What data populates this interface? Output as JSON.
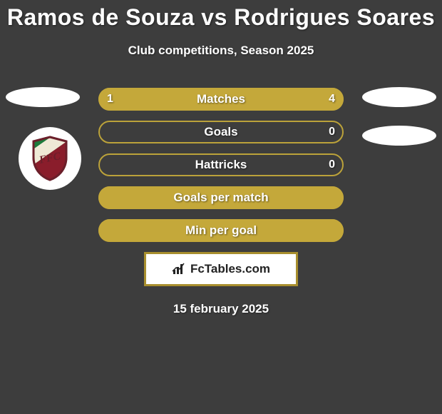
{
  "title": "Ramos de Souza vs Rodrigues Soares",
  "subtitle": "Club competitions, Season 2025",
  "date": "15 february 2025",
  "brand": "FcTables.com",
  "colors": {
    "background": "#3d3d3d",
    "text": "#ffffff",
    "accent": "#c4a83a",
    "accent_border": "#bba23a",
    "brand_border": "#a88f2e",
    "oval": "#ffffff"
  },
  "club_logo": {
    "bg": "#ffffff",
    "shield_border": "#6b1f2a",
    "stripe_green": "#1e7a3c",
    "stripe_cream": "#efe9d6",
    "stripe_red": "#8a1d2b",
    "monogram": "FFC"
  },
  "bars": [
    {
      "label": "Matches",
      "left_value": "1",
      "right_value": "4",
      "left_pct": 20,
      "right_pct": 80,
      "left_color": "#c4a83a",
      "right_color": "#c4a83a",
      "border_color": "#bba23a",
      "show_values": true
    },
    {
      "label": "Goals",
      "left_value": "",
      "right_value": "0",
      "left_pct": 0,
      "right_pct": 0,
      "left_color": "#c4a83a",
      "right_color": "#c4a83a",
      "border_color": "#bba23a",
      "show_values": true
    },
    {
      "label": "Hattricks",
      "left_value": "",
      "right_value": "0",
      "left_pct": 0,
      "right_pct": 0,
      "left_color": "#c4a83a",
      "right_color": "#c4a83a",
      "border_color": "#bba23a",
      "show_values": true
    },
    {
      "label": "Goals per match",
      "left_value": "",
      "right_value": "",
      "left_pct": 100,
      "right_pct": 0,
      "left_color": "#c4a83a",
      "right_color": "#c4a83a",
      "border_color": "#bba23a",
      "show_values": false,
      "full_fill": true
    },
    {
      "label": "Min per goal",
      "left_value": "",
      "right_value": "",
      "left_pct": 100,
      "right_pct": 0,
      "left_color": "#c4a83a",
      "right_color": "#c4a83a",
      "border_color": "#bba23a",
      "show_values": false,
      "full_fill": true
    }
  ]
}
